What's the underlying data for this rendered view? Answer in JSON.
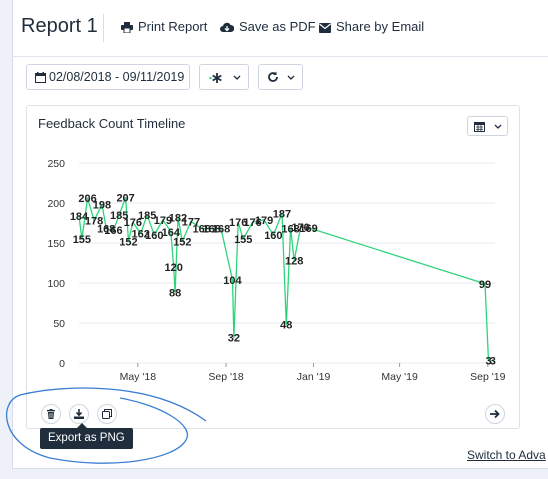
{
  "header": {
    "title": "Report 1",
    "print_label": "Print Report",
    "pdf_label": "Save as PDF",
    "email_label": "Share by Email"
  },
  "controls": {
    "date_range": "02/08/2018 - 09/11/2019",
    "star_icon": "asterisk-icon",
    "refresh_icon": "refresh-icon"
  },
  "card": {
    "title": "Feedback Count Timeline",
    "menu_icon": "calendar-icon"
  },
  "actions": {
    "delete_icon": "trash-icon",
    "export_icon": "download-icon",
    "copy_icon": "copy-icon",
    "next_icon": "arrow-right-icon",
    "tooltip": "Export as PNG"
  },
  "footer": {
    "switch_link": "Switch to Adva"
  },
  "colors": {
    "line": "#2ed47a",
    "accent_annotation": "#3b7fd1",
    "text": "#1f2d3d"
  },
  "chart_data": {
    "type": "line",
    "title": "Feedback Count Timeline",
    "xlabel": "",
    "ylabel": "",
    "ylim": [
      0,
      250
    ],
    "yticks": [
      0,
      50,
      100,
      150,
      200,
      250
    ],
    "xlim": [
      "2018-02-08",
      "2019-09-11"
    ],
    "xticks": [
      {
        "date": "2018-05-01",
        "label": "May '18"
      },
      {
        "date": "2018-09-01",
        "label": "Sep '18"
      },
      {
        "date": "2019-01-01",
        "label": "Jan '19"
      },
      {
        "date": "2019-05-01",
        "label": "May '19"
      },
      {
        "date": "2019-09-01",
        "label": "Sep '19"
      }
    ],
    "grid": true,
    "series": [
      {
        "points": [
          [
            "2018-02-08",
            184
          ],
          [
            "2018-02-12",
            155
          ],
          [
            "2018-02-20",
            206
          ],
          [
            "2018-03-01",
            178
          ],
          [
            "2018-03-12",
            198
          ],
          [
            "2018-03-18",
            168
          ],
          [
            "2018-03-28",
            166
          ],
          [
            "2018-04-05",
            185
          ],
          [
            "2018-04-14",
            207
          ],
          [
            "2018-04-18",
            152
          ],
          [
            "2018-04-24",
            176
          ],
          [
            "2018-05-05",
            162
          ],
          [
            "2018-05-14",
            185
          ],
          [
            "2018-05-24",
            160
          ],
          [
            "2018-06-05",
            179
          ],
          [
            "2018-06-16",
            164
          ],
          [
            "2018-06-20",
            120
          ],
          [
            "2018-06-22",
            88
          ],
          [
            "2018-06-26",
            182
          ],
          [
            "2018-07-02",
            152
          ],
          [
            "2018-07-14",
            177
          ],
          [
            "2018-07-29",
            168
          ],
          [
            "2018-08-12",
            168
          ],
          [
            "2018-08-25",
            168
          ],
          [
            "2018-09-10",
            104
          ],
          [
            "2018-09-12",
            32
          ],
          [
            "2018-09-18",
            176
          ],
          [
            "2018-09-25",
            155
          ],
          [
            "2018-10-08",
            176
          ],
          [
            "2018-10-24",
            179
          ],
          [
            "2018-11-06",
            160
          ],
          [
            "2018-11-18",
            187
          ],
          [
            "2018-11-24",
            48
          ],
          [
            "2018-11-30",
            168
          ],
          [
            "2018-12-05",
            128
          ],
          [
            "2018-12-14",
            170
          ],
          [
            "2018-12-25",
            169
          ],
          [
            "2019-08-28",
            99
          ],
          [
            "2019-09-02",
            3
          ],
          [
            "2019-09-08",
            3
          ],
          [
            "2019-09-11",
            0
          ]
        ]
      }
    ],
    "data_labels": [
      {
        "date": "2018-02-08",
        "value": 184,
        "text": "184"
      },
      {
        "date": "2018-02-12",
        "value": 155,
        "text": "155"
      },
      {
        "date": "2018-02-20",
        "value": 206,
        "text": "206"
      },
      {
        "date": "2018-03-01",
        "value": 178,
        "text": "178"
      },
      {
        "date": "2018-03-12",
        "value": 198,
        "text": "198"
      },
      {
        "date": "2018-03-18",
        "value": 168,
        "text": "168"
      },
      {
        "date": "2018-03-28",
        "value": 166,
        "text": "166"
      },
      {
        "date": "2018-04-05",
        "value": 185,
        "text": "185"
      },
      {
        "date": "2018-04-14",
        "value": 207,
        "text": "207"
      },
      {
        "date": "2018-04-18",
        "value": 152,
        "text": "152"
      },
      {
        "date": "2018-04-24",
        "value": 176,
        "text": "176"
      },
      {
        "date": "2018-05-05",
        "value": 162,
        "text": "162"
      },
      {
        "date": "2018-05-14",
        "value": 185,
        "text": "185"
      },
      {
        "date": "2018-05-24",
        "value": 160,
        "text": "160"
      },
      {
        "date": "2018-06-05",
        "value": 179,
        "text": "179"
      },
      {
        "date": "2018-06-16",
        "value": 164,
        "text": "164"
      },
      {
        "date": "2018-06-20",
        "value": 120,
        "text": "120"
      },
      {
        "date": "2018-06-22",
        "value": 88,
        "text": "88"
      },
      {
        "date": "2018-06-26",
        "value": 182,
        "text": "182"
      },
      {
        "date": "2018-07-02",
        "value": 152,
        "text": "152"
      },
      {
        "date": "2018-07-14",
        "value": 177,
        "text": "177"
      },
      {
        "date": "2018-07-29",
        "value": 168,
        "text": "168"
      },
      {
        "date": "2018-08-12",
        "value": 168,
        "text": "168"
      },
      {
        "date": "2018-08-25",
        "value": 168,
        "text": "168"
      },
      {
        "date": "2018-09-10",
        "value": 104,
        "text": "104"
      },
      {
        "date": "2018-09-12",
        "value": 32,
        "text": "32"
      },
      {
        "date": "2018-09-18",
        "value": 176,
        "text": "176"
      },
      {
        "date": "2018-09-25",
        "value": 155,
        "text": "155"
      },
      {
        "date": "2018-10-08",
        "value": 176,
        "text": "176"
      },
      {
        "date": "2018-10-24",
        "value": 179,
        "text": "179"
      },
      {
        "date": "2018-11-06",
        "value": 160,
        "text": "160"
      },
      {
        "date": "2018-11-18",
        "value": 187,
        "text": "187"
      },
      {
        "date": "2018-11-24",
        "value": 48,
        "text": "48"
      },
      {
        "date": "2018-11-30",
        "value": 168,
        "text": "168"
      },
      {
        "date": "2018-12-05",
        "value": 128,
        "text": "128"
      },
      {
        "date": "2018-12-14",
        "value": 170,
        "text": "170"
      },
      {
        "date": "2018-12-25",
        "value": 169,
        "text": "169"
      },
      {
        "date": "2019-08-28",
        "value": 99,
        "text": "99"
      },
      {
        "date": "2019-09-02",
        "value": 3,
        "text": "3"
      },
      {
        "date": "2019-09-08",
        "value": 3,
        "text": "3"
      }
    ]
  }
}
